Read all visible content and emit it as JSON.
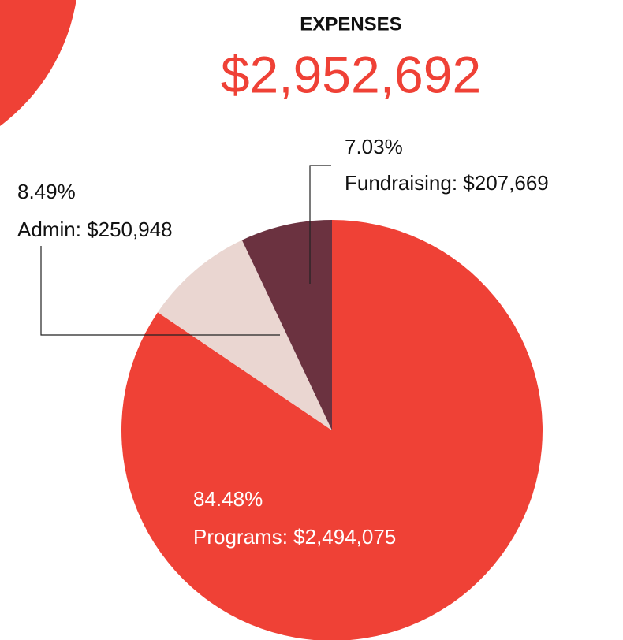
{
  "chart_data": {
    "type": "pie",
    "title": "EXPENSES",
    "subtitle": "$2,952,692",
    "labels": [
      "Programs: $2,494,075",
      "Admin: $250,948",
      "Fundraising: $207,669"
    ],
    "values": [
      84.48,
      8.49,
      7.03
    ],
    "value_labels": [
      "84.48%",
      "8.49%",
      "7.03%"
    ],
    "colors": [
      "#ef4136",
      "#ead6d1",
      "#6b3240"
    ]
  }
}
